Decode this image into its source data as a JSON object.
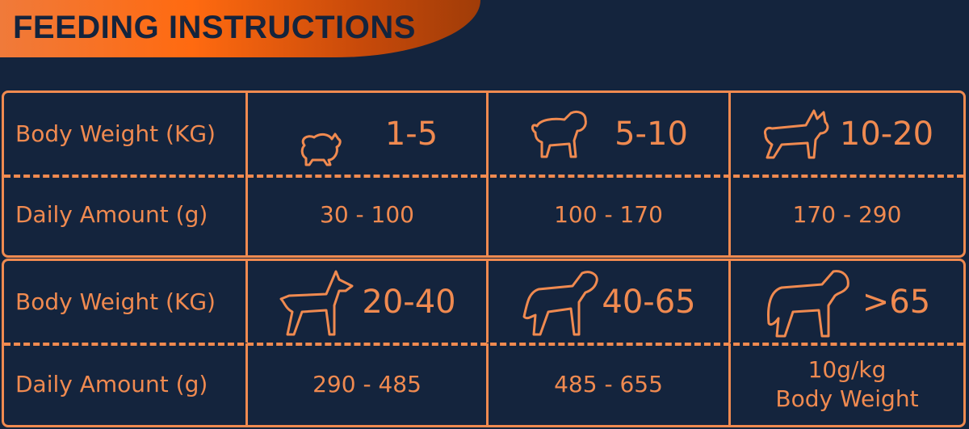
{
  "title": "FEEDING INSTRUCTIONS",
  "colors": {
    "background": "#14243d",
    "accent": "#f08a50",
    "banner": "#ff6a10"
  },
  "row_labels": {
    "weight": "Body Weight (KG)",
    "amount": "Daily Amount (g)"
  },
  "groups": [
    {
      "weight": "1-5",
      "amount": "30 - 100",
      "icon": "pomeranian-icon"
    },
    {
      "weight": "5-10",
      "amount": "100 - 170",
      "icon": "pug-icon"
    },
    {
      "weight": "10-20",
      "amount": "170 - 290",
      "icon": "french-bulldog-icon"
    },
    {
      "weight": "20-40",
      "amount": "290 - 485",
      "icon": "doberman-icon"
    },
    {
      "weight": "40-65",
      "amount": "485 - 655",
      "icon": "rottweiler-icon"
    },
    {
      "weight": ">65",
      "amount_line1": "10g/kg",
      "amount_line2": "Body Weight",
      "icon": "mastiff-icon"
    }
  ]
}
